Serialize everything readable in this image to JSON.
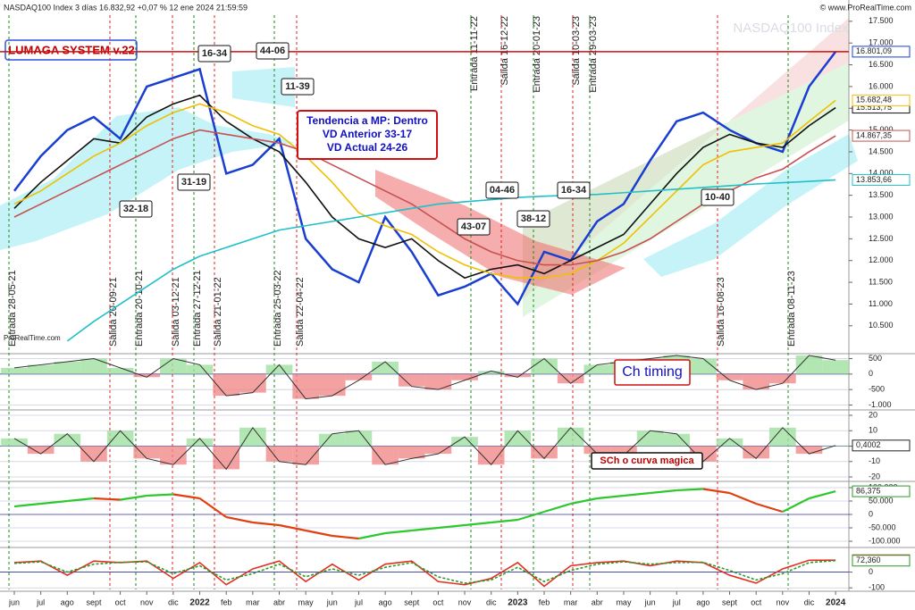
{
  "header": {
    "title": "NASDAQ100 Index 3 días 16.832,92 +0,07 % 12 ene 2024 21:59:59",
    "copyright": "© www.ProRealTime.com",
    "watermark": "NASDAQ100 Index",
    "system": "LUMAGA SYSTEM v.22",
    "source": "ProRealTime.com"
  },
  "chart_data": [
    {
      "type": "line",
      "ylim": [
        9880,
        17640
      ],
      "yticks": [
        {
          "value": 10500,
          "label": "10.500"
        },
        {
          "value": 11000,
          "label": "11.000"
        },
        {
          "value": 11500,
          "label": "11.500"
        },
        {
          "value": 12000,
          "label": "12.000"
        },
        {
          "value": 12500,
          "label": "12.500"
        },
        {
          "value": 13000,
          "label": "13.000"
        },
        {
          "value": 13500,
          "label": "13.500"
        },
        {
          "value": 14000,
          "label": "14.000"
        },
        {
          "value": 14500,
          "label": "14.500"
        },
        {
          "value": 15000,
          "label": "15.000"
        },
        {
          "value": 15500,
          "label": "15.500"
        },
        {
          "value": 16000,
          "label": "16.000"
        },
        {
          "value": 16500,
          "label": "16.500"
        },
        {
          "value": 17000,
          "label": "17.000"
        },
        {
          "value": 17500,
          "label": "17.500"
        }
      ],
      "series": [
        {
          "name": "NASDAQ100",
          "color": "#1a3fd0",
          "values": [
            13600,
            14400,
            15000,
            15300,
            14800,
            16000,
            16200,
            16400,
            14000,
            14200,
            14800,
            12500,
            11800,
            11500,
            13000,
            12200,
            11200,
            11400,
            11700,
            11000,
            12200,
            12000,
            12900,
            13300,
            14300,
            15200,
            15400,
            15000,
            14700,
            14500,
            16000,
            16801.09
          ],
          "value_labels": [
            null,
            null,
            null,
            null,
            null,
            null,
            null,
            null,
            null,
            null,
            null,
            null,
            null,
            null,
            null,
            null,
            null,
            null,
            null,
            null,
            null,
            null,
            null,
            null,
            null,
            null,
            null,
            null,
            null,
            null,
            null,
            "16.801,09"
          ]
        },
        {
          "name": "MA black",
          "color": "#111111",
          "values": [
            13200,
            13800,
            14300,
            14800,
            14700,
            15300,
            15600,
            15800,
            15200,
            14800,
            14500,
            13800,
            13000,
            12500,
            12300,
            12500,
            12000,
            11600,
            11800,
            11900,
            11700,
            12000,
            12300,
            12600,
            13300,
            14000,
            14600,
            14900,
            14700,
            14600,
            15100,
            15513.75
          ],
          "value_labels": [
            null,
            null,
            null,
            null,
            null,
            null,
            null,
            null,
            null,
            null,
            null,
            null,
            null,
            null,
            null,
            null,
            null,
            null,
            null,
            null,
            null,
            null,
            null,
            null,
            null,
            null,
            null,
            null,
            null,
            null,
            null,
            "15.513,75"
          ]
        },
        {
          "name": "MA yellow",
          "color": "#f0c000",
          "values": [
            13300,
            13600,
            14000,
            14400,
            14700,
            15100,
            15400,
            15600,
            15400,
            15100,
            14900,
            14400,
            13800,
            13100,
            12800,
            12600,
            12200,
            11900,
            11700,
            11600,
            11600,
            11700,
            12000,
            12400,
            13000,
            13600,
            14200,
            14500,
            14600,
            14700,
            15200,
            15682.48
          ],
          "value_labels": [
            null,
            null,
            null,
            null,
            null,
            null,
            null,
            null,
            null,
            null,
            null,
            null,
            null,
            null,
            null,
            null,
            null,
            null,
            null,
            null,
            null,
            null,
            null,
            null,
            null,
            null,
            null,
            null,
            null,
            null,
            null,
            "15.682,48"
          ]
        },
        {
          "name": "MA red",
          "color": "#c85050",
          "values": [
            13000,
            13300,
            13600,
            13900,
            14200,
            14500,
            14800,
            15000,
            14900,
            14800,
            14700,
            14500,
            14200,
            13900,
            13600,
            13300,
            12900,
            12500,
            12200,
            12000,
            11900,
            11900,
            12000,
            12200,
            12500,
            12900,
            13300,
            13600,
            13900,
            14100,
            14500,
            14867.35
          ],
          "value_labels": [
            null,
            null,
            null,
            null,
            null,
            null,
            null,
            null,
            null,
            null,
            null,
            null,
            null,
            null,
            null,
            null,
            null,
            null,
            null,
            null,
            null,
            null,
            null,
            null,
            null,
            null,
            null,
            null,
            null,
            null,
            null,
            "14.867,35"
          ]
        },
        {
          "name": "MA cyan",
          "color": "#20c0c8",
          "values": [
            null,
            null,
            10150,
            10600,
            11000,
            11400,
            11800,
            12100,
            12300,
            12500,
            12700,
            12800,
            12900,
            13000,
            13100,
            13200,
            13300,
            13350,
            13400,
            13450,
            13480,
            13500,
            13520,
            13560,
            13600,
            13640,
            13680,
            13720,
            13760,
            13790,
            13820,
            13853.66
          ],
          "value_labels": [
            null,
            null,
            null,
            null,
            null,
            null,
            null,
            null,
            null,
            null,
            null,
            null,
            null,
            null,
            null,
            null,
            null,
            null,
            null,
            null,
            null,
            null,
            null,
            null,
            null,
            null,
            null,
            null,
            null,
            null,
            null,
            "13.853,66"
          ]
        }
      ],
      "signals": [
        {
          "label": "Entrada 28-05-21",
          "color": "#1a8a1a"
        },
        {
          "label": "Salida 20-09-21",
          "color": "#e02020"
        },
        {
          "label": "Entrada 20-10-21",
          "color": "#1a8a1a"
        },
        {
          "label": "Salida 03-12-21",
          "color": "#e02020"
        },
        {
          "label": "Entrada 27-12-21",
          "color": "#1a8a1a"
        },
        {
          "label": "Salida 21-01-22",
          "color": "#e02020"
        },
        {
          "label": "Entrada 25-03-22",
          "color": "#1a8a1a"
        },
        {
          "label": "Salida 22-04-22",
          "color": "#e02020"
        },
        {
          "label": "Entrada 11-11-22",
          "color": "#1a8a1a"
        },
        {
          "label": "Salida 16-12-22",
          "color": "#e02020"
        },
        {
          "label": "Entrada 20-01-23",
          "color": "#1a8a1a"
        },
        {
          "label": "Salida 10-03-23",
          "color": "#e02020"
        },
        {
          "label": "Entrada 29-03-23",
          "color": "#1a8a1a"
        },
        {
          "label": "Salida 16-08-23",
          "color": "#e02020"
        },
        {
          "label": "Entrada 08-11-23",
          "color": "#1a8a1a"
        }
      ],
      "boxes": [
        {
          "text": "16-34",
          "color": "#e02020"
        },
        {
          "text": "44-06",
          "color": "#1a8a1a"
        },
        {
          "text": "11-39",
          "color": "#e02020"
        },
        {
          "text": "31-19",
          "color": "#1a8a1a"
        },
        {
          "text": "32-18",
          "color": "#1a8a1a"
        },
        {
          "text": "04-46",
          "color": "#e02020"
        },
        {
          "text": "16-34",
          "color": "#e02020"
        },
        {
          "text": "43-07",
          "color": "#1a8a1a"
        },
        {
          "text": "38-12",
          "color": "#1a8a1a"
        },
        {
          "text": "10-40",
          "color": "#e02020"
        }
      ],
      "trend_box": [
        "Tendencia a MP: Dentro",
        "VD Anterior 33-17",
        "VD Actual 24-26"
      ]
    },
    {
      "type": "area",
      "title": "Ch timing",
      "ylim": [
        -1130,
        630
      ],
      "yticks": [
        500,
        0,
        -500,
        {
          "value": -1000,
          "label": "-1.000"
        }
      ],
      "values": [
        200,
        300,
        400,
        500,
        200,
        -100,
        500,
        300,
        -700,
        -600,
        300,
        -800,
        -700,
        -200,
        400,
        -400,
        -500,
        -200,
        100,
        -100,
        500,
        -300,
        300,
        400,
        500,
        600,
        500,
        -200,
        -500,
        -300,
        600,
        450
      ]
    },
    {
      "type": "area",
      "title": "SCh o curva magica",
      "ylim": [
        -22.3,
        22.9
      ],
      "yticks": [
        20,
        10,
        0,
        -10,
        -20
      ],
      "values": [
        5,
        -5,
        8,
        -10,
        10,
        -8,
        -12,
        5,
        -15,
        12,
        -10,
        -12,
        8,
        10,
        -12,
        -8,
        -5,
        6,
        -12,
        10,
        -8,
        12,
        -5,
        -6,
        10,
        8,
        -10,
        5,
        -8,
        12,
        -5,
        0.4002
      ],
      "value_labels": [
        null,
        null,
        null,
        null,
        null,
        null,
        null,
        null,
        null,
        null,
        null,
        null,
        null,
        null,
        null,
        null,
        null,
        null,
        null,
        null,
        null,
        null,
        null,
        null,
        null,
        null,
        null,
        null,
        null,
        null,
        null,
        "0,4002"
      ]
    },
    {
      "type": "line",
      "ylim": [
        -120000,
        120000
      ],
      "yticks": [
        {
          "value": 100000,
          "label": "100.000"
        },
        {
          "value": 50000,
          "label": "50.000"
        },
        0,
        {
          "value": -50000,
          "label": "-50.000"
        },
        {
          "value": -100000,
          "label": "-100.000"
        }
      ],
      "values": [
        30000,
        40000,
        50000,
        60000,
        55000,
        70000,
        75000,
        60000,
        -10000,
        -30000,
        -40000,
        -60000,
        -80000,
        -90000,
        -70000,
        -60000,
        -50000,
        -40000,
        -30000,
        -20000,
        10000,
        40000,
        60000,
        70000,
        80000,
        90000,
        95000,
        80000,
        40000,
        10000,
        60000,
        86375
      ],
      "value_labels": [
        null,
        null,
        null,
        null,
        null,
        null,
        null,
        null,
        null,
        null,
        null,
        null,
        null,
        null,
        null,
        null,
        null,
        null,
        null,
        null,
        null,
        null,
        null,
        null,
        null,
        null,
        null,
        null,
        null,
        null,
        null,
        "86,375"
      ]
    },
    {
      "type": "line",
      "ylim": [
        -110,
        150
      ],
      "yticks": [
        0,
        -100
      ],
      "series": [
        {
          "name": "fast",
          "color": "#e03020",
          "values": [
            60,
            70,
            -20,
            70,
            60,
            70,
            -40,
            60,
            -80,
            20,
            70,
            -60,
            50,
            -50,
            50,
            70,
            -60,
            -80,
            -40,
            60,
            -90,
            40,
            60,
            70,
            40,
            70,
            60,
            -20,
            -70,
            20,
            75,
            75.185
          ],
          "value_labels": [
            null,
            null,
            null,
            null,
            null,
            null,
            null,
            null,
            null,
            null,
            null,
            null,
            null,
            null,
            null,
            null,
            null,
            null,
            null,
            null,
            null,
            null,
            null,
            null,
            null,
            null,
            null,
            null,
            null,
            null,
            null,
            "75,185"
          ]
        },
        {
          "name": "slow",
          "color": "#2a9a2a",
          "values": [
            55,
            65,
            0,
            50,
            62,
            65,
            -10,
            40,
            -50,
            -10,
            50,
            -30,
            20,
            -20,
            30,
            60,
            -30,
            -70,
            -50,
            30,
            -60,
            10,
            50,
            65,
            50,
            60,
            62,
            10,
            -50,
            -10,
            60,
            72.36
          ],
          "value_labels": [
            null,
            null,
            null,
            null,
            null,
            null,
            null,
            null,
            null,
            null,
            null,
            null,
            null,
            null,
            null,
            null,
            null,
            null,
            null,
            null,
            null,
            null,
            null,
            null,
            null,
            null,
            null,
            null,
            null,
            null,
            null,
            "72,360"
          ]
        }
      ],
      "categories": [
        "jun",
        "jul",
        "ago",
        "sept",
        "oct",
        "nov",
        "dic",
        "2022",
        "feb",
        "mar",
        "abr",
        "may",
        "jun",
        "jul",
        "ago",
        "sept",
        "oct",
        "nov",
        "dic",
        "2023",
        "feb",
        "mar",
        "abr",
        "may",
        "jun",
        "jul",
        "ago",
        "sept",
        "oct",
        "nov",
        "dic",
        "2024"
      ]
    }
  ]
}
